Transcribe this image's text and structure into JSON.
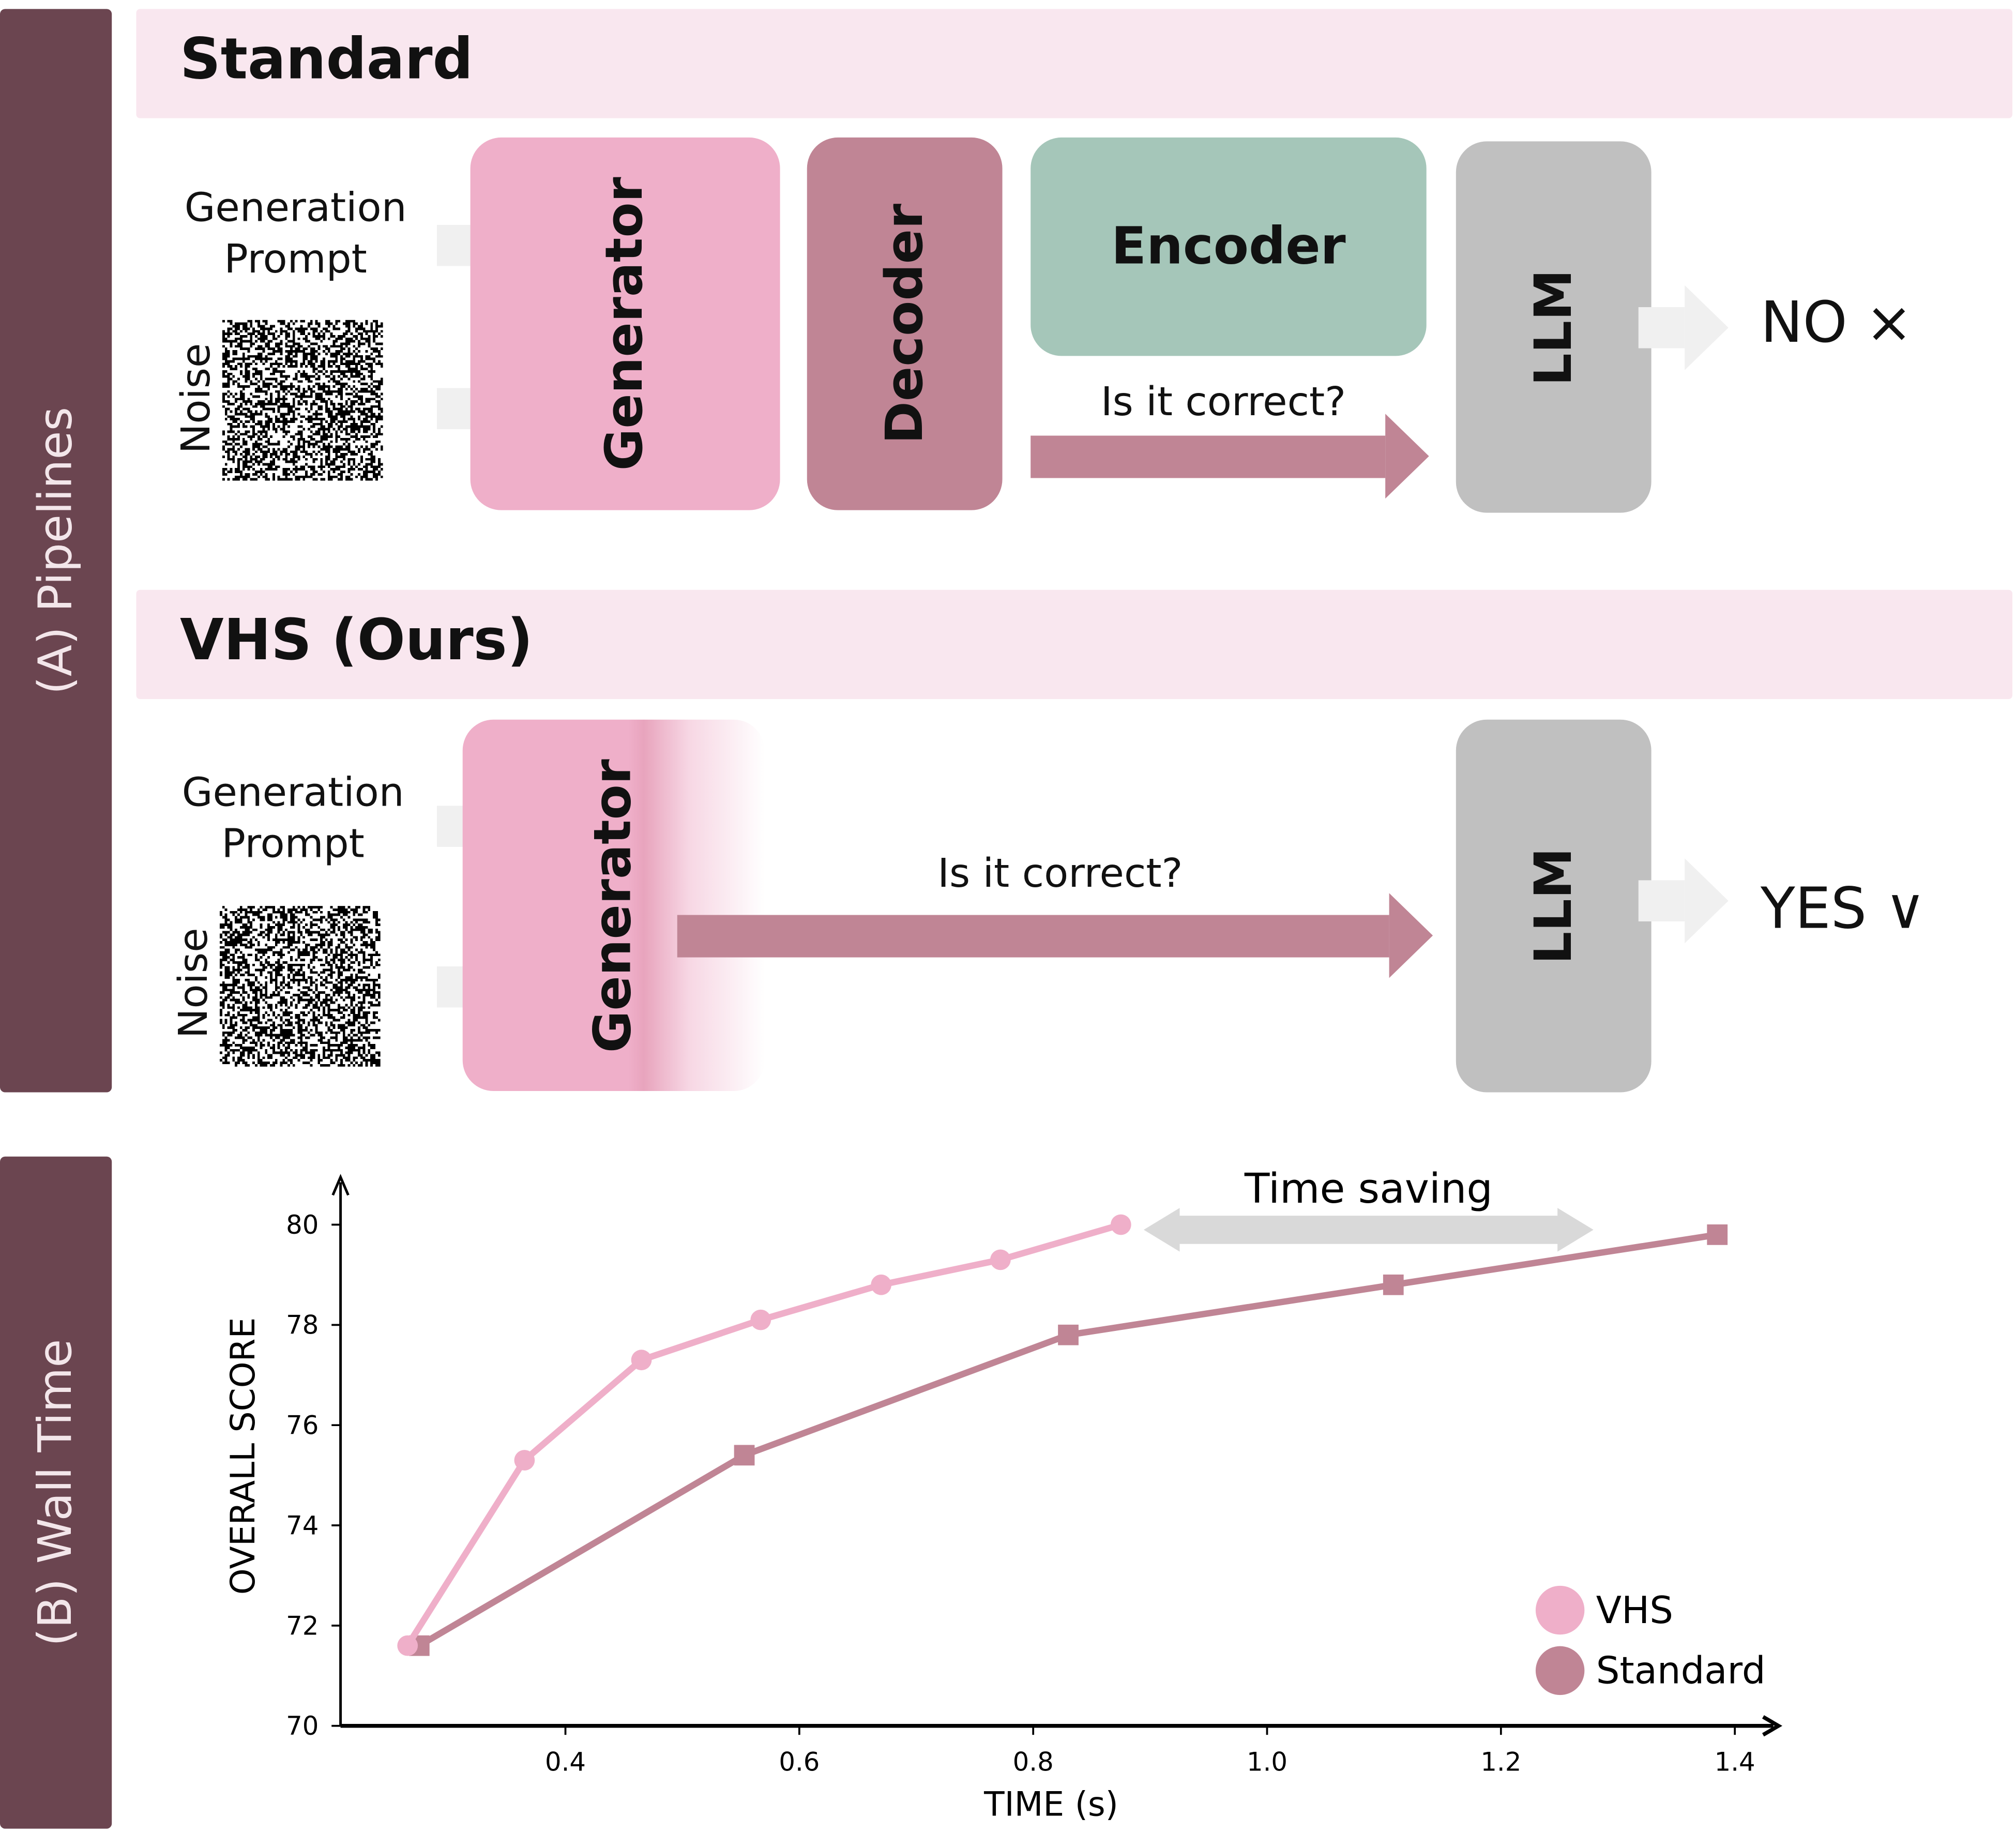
{
  "section_a": {
    "label": "(A) Pipelines",
    "standard": {
      "title": "Standard",
      "prompt_label": "Generation\nPrompt",
      "noise_label": "Noise",
      "generator": "Generator",
      "decoder": "Decoder",
      "encoder": "Encoder",
      "question": "Is it correct?",
      "llm": "LLM",
      "verdict": "NO ⨯"
    },
    "vhs": {
      "title": "VHS (Ours)",
      "prompt_label": "Generation\nPrompt",
      "noise_label": "Noise",
      "generator": "Generator",
      "question": "Is it correct?",
      "llm": "LLM",
      "verdict": "YES ∨"
    },
    "colors": {
      "generator": "#efafc9",
      "decoder": "#c08595",
      "encoder": "#a5c6b9",
      "llm": "#c0c0c0",
      "header": "#f9e7ef",
      "sidebar": "#6b4550"
    }
  },
  "section_b": {
    "label": "(B) Wall Time"
  },
  "chart_data": {
    "type": "line",
    "xlabel": "TIME (s)",
    "ylabel": "OVERALL SCORE",
    "xlim": [
      0.22,
      1.45
    ],
    "ylim": [
      70,
      81
    ],
    "xticks": [
      "0.4",
      "0.6",
      "0.8",
      "1.0",
      "1.2",
      "1.4"
    ],
    "yticks": [
      "70",
      "72",
      "74",
      "76",
      "78",
      "80"
    ],
    "grid": false,
    "legend": "bottom-right",
    "annotation": "Time saving",
    "series": [
      {
        "name": "VHS",
        "color": "#efafc9",
        "marker": "circle",
        "x": [
          0.265,
          0.365,
          0.465,
          0.567,
          0.67,
          0.772,
          0.875
        ],
        "y": [
          71.6,
          75.3,
          77.3,
          78.1,
          78.8,
          79.3,
          80.0
        ]
      },
      {
        "name": "Standard",
        "color": "#c08595",
        "marker": "square",
        "x": [
          0.275,
          0.553,
          0.83,
          1.108,
          1.385
        ],
        "y": [
          71.6,
          75.4,
          77.8,
          78.8,
          79.8
        ]
      }
    ]
  }
}
